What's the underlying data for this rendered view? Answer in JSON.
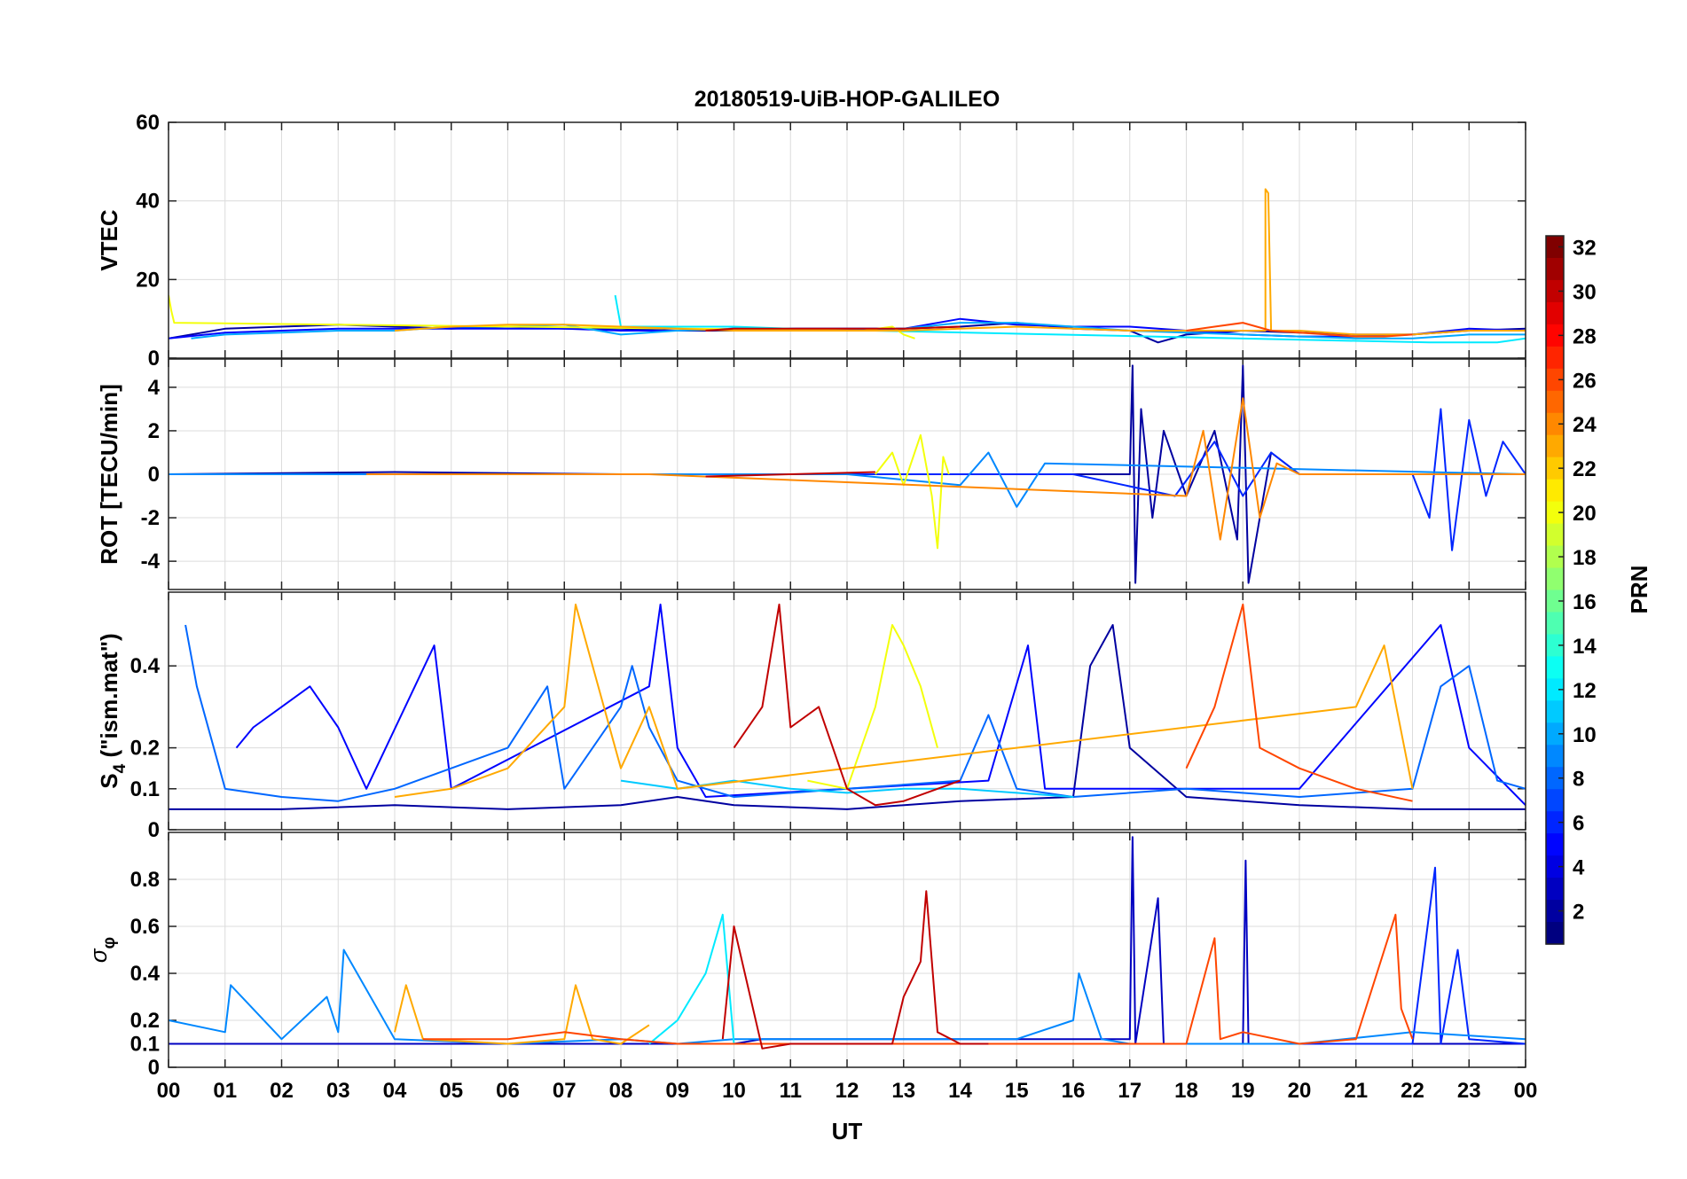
{
  "chart_data": {
    "type": "line",
    "title": "20180519-UiB-HOP-GALILEO",
    "xlabel": "UT",
    "x_ticks": [
      "00",
      "01",
      "02",
      "03",
      "04",
      "05",
      "06",
      "07",
      "08",
      "09",
      "10",
      "11",
      "12",
      "13",
      "14",
      "15",
      "16",
      "17",
      "18",
      "19",
      "20",
      "21",
      "22",
      "23",
      "00"
    ],
    "xlim": [
      0,
      24
    ],
    "grid": true,
    "colorbar": {
      "label": "PRN",
      "range": [
        1,
        32
      ],
      "ticks": [
        "2",
        "4",
        "6",
        "8",
        "10",
        "12",
        "14",
        "16",
        "18",
        "20",
        "22",
        "24",
        "26",
        "28",
        "30",
        "32"
      ],
      "colormap": "jet"
    },
    "panels": [
      {
        "ylabel": "VTEC",
        "ylim": [
          0,
          60
        ],
        "yticks": [
          "0",
          "20",
          "40",
          "60"
        ],
        "series": [
          {
            "prn": 2,
            "x": [
              0,
              1,
              2,
              3,
              4,
              5,
              6,
              7,
              8,
              9,
              10,
              11,
              12,
              13,
              14,
              15,
              16,
              17,
              17.5,
              18,
              19,
              20,
              21,
              22,
              23,
              24
            ],
            "y": [
              5,
              7.5,
              8,
              8.5,
              8,
              7.5,
              8,
              7.5,
              7.5,
              7,
              7,
              7.5,
              7.5,
              7.5,
              8,
              9,
              7.5,
              7,
              4,
              6,
              7,
              6.5,
              6,
              6,
              7,
              7.5
            ]
          },
          {
            "prn": 5,
            "x": [
              0,
              1,
              2,
              3,
              4,
              5,
              6,
              7,
              8,
              9,
              10,
              11,
              12,
              13,
              14,
              15,
              16,
              17,
              18,
              19,
              20,
              21,
              22,
              23,
              24
            ],
            "y": [
              5,
              6.5,
              7,
              7.5,
              7.5,
              7.5,
              7.5,
              7.5,
              7,
              7,
              7.5,
              7.5,
              7.5,
              7.5,
              10,
              8.5,
              8,
              8,
              7,
              6,
              5.5,
              5.5,
              6,
              7.5,
              7
            ]
          },
          {
            "prn": 10,
            "x": [
              0.4,
              1,
              2,
              3,
              4,
              5,
              6,
              7,
              8,
              9,
              10,
              11,
              12,
              13,
              14,
              15,
              16,
              17,
              18,
              19,
              20,
              21,
              22,
              23,
              24
            ],
            "y": [
              5,
              6,
              6.5,
              7,
              7,
              8,
              8,
              8.5,
              6,
              7,
              7.5,
              7,
              7,
              7.5,
              9,
              9,
              8,
              7,
              6.5,
              6,
              5.5,
              5,
              5,
              6,
              6
            ]
          },
          {
            "prn": 12,
            "x": [
              7.9,
              8,
              9,
              10,
              11,
              12,
              12.5,
              22.3,
              23,
              23.5,
              24
            ],
            "y": [
              16,
              8,
              8,
              8,
              7.5,
              7,
              7,
              4,
              4,
              4,
              5
            ]
          },
          {
            "prn": 20,
            "x": [
              0,
              0.05,
              0.1,
              12.3,
              12.8,
              13,
              13.2
            ],
            "y": [
              16,
              12,
              9,
              7,
              8,
              6,
              5
            ]
          },
          {
            "prn": 23,
            "x": [
              4,
              5,
              6,
              7,
              8,
              9,
              10,
              11,
              12,
              13,
              14,
              15,
              16,
              17,
              18,
              19,
              19.4,
              19.4,
              19.45,
              19.5,
              20,
              21,
              22,
              23,
              24
            ],
            "y": [
              7,
              8,
              8.5,
              8.5,
              8,
              7.5,
              7,
              7,
              7,
              7,
              7.5,
              8,
              7.5,
              7,
              7,
              7,
              7,
              43,
              42,
              7,
              7,
              6,
              6,
              7,
              7
            ]
          },
          {
            "prn": 26,
            "x": [
              18,
              18.5,
              19,
              19.5,
              20,
              20.5,
              21,
              21.5,
              22
            ],
            "y": [
              7,
              8,
              9,
              7,
              6.5,
              6,
              5.5,
              5.5,
              6
            ]
          },
          {
            "prn": 30,
            "x": [
              9.5,
              10,
              11,
              12,
              13,
              14
            ],
            "y": [
              7,
              7.5,
              7.5,
              7.5,
              7.5,
              8
            ]
          }
        ]
      },
      {
        "ylabel": "ROT [TECU/min]",
        "ylim": [
          -5.3,
          5.3
        ],
        "yticks": [
          "-4",
          "-2",
          "0",
          "2",
          "4"
        ],
        "series": [
          {
            "prn": 2,
            "x": [
              0,
              4,
              8,
              12,
              16,
              17,
              17.05,
              17.1,
              17.2,
              17.4,
              17.6,
              18,
              18.5,
              18.9,
              19,
              19.1,
              19.5,
              20,
              24
            ],
            "y": [
              0,
              0.1,
              0,
              0,
              0,
              0,
              5,
              -5,
              3,
              -2,
              2,
              -1,
              2,
              -3,
              5,
              -5,
              1,
              0,
              0
            ]
          },
          {
            "prn": 6,
            "x": [
              0,
              10,
              16,
              17.8,
              18.5,
              19,
              19.5,
              20,
              22,
              22.3,
              22.5,
              22.7,
              23,
              23.3,
              23.6,
              24
            ],
            "y": [
              0,
              0,
              0,
              -1,
              1.5,
              -1,
              1,
              0,
              0,
              -2,
              3,
              -3.5,
              2.5,
              -1,
              1.5,
              0
            ]
          },
          {
            "prn": 9,
            "x": [
              0,
              4,
              8,
              12,
              14,
              14.5,
              15,
              15.5,
              24
            ],
            "y": [
              0,
              0,
              0,
              0,
              -0.5,
              1,
              -1.5,
              0.5,
              0
            ]
          },
          {
            "prn": 20,
            "x": [
              12.5,
              12.8,
              13,
              13.3,
              13.5,
              13.6,
              13.7,
              13.8
            ],
            "y": [
              0,
              1,
              -0.5,
              1.8,
              -1,
              -3.4,
              0.8,
              0
            ]
          },
          {
            "prn": 24,
            "x": [
              3.5,
              6,
              8.5,
              18,
              18.3,
              18.6,
              19,
              19.3,
              19.6,
              20,
              22,
              24
            ],
            "y": [
              0,
              0,
              0,
              -1,
              2,
              -3,
              3.5,
              -2,
              0.5,
              0,
              0,
              0
            ]
          },
          {
            "prn": 30,
            "x": [
              9.5,
              11,
              12.5
            ],
            "y": [
              -0.1,
              0,
              0.1
            ]
          }
        ]
      },
      {
        "ylabel": "S4 (\"ism.mat\")",
        "ylabel_main": "S",
        "ylabel_sub": "4",
        "ylabel_rest": " (\"ism.mat\")",
        "ylim": [
          0,
          0.58
        ],
        "yticks": [
          "0",
          "0.1",
          "0.2",
          "0.4"
        ],
        "series": [
          {
            "prn": 2,
            "x": [
              0,
              2,
              4,
              6,
              8,
              9,
              10,
              12,
              14,
              16,
              16.3,
              16.7,
              17,
              18,
              20,
              22,
              24
            ],
            "y": [
              0.05,
              0.05,
              0.06,
              0.05,
              0.06,
              0.08,
              0.06,
              0.05,
              0.07,
              0.08,
              0.4,
              0.5,
              0.2,
              0.08,
              0.06,
              0.05,
              0.05
            ]
          },
          {
            "prn": 5,
            "x": [
              1.2,
              1.5,
              2,
              2.5,
              3,
              3.5,
              4.7,
              5,
              8.5,
              8.7,
              9,
              9.5,
              14.5,
              15.2,
              15.5,
              20,
              22.5,
              23,
              24
            ],
            "y": [
              0.2,
              0.25,
              0.3,
              0.35,
              0.25,
              0.1,
              0.45,
              0.1,
              0.35,
              0.55,
              0.2,
              0.08,
              0.12,
              0.45,
              0.1,
              0.1,
              0.5,
              0.2,
              0.06
            ]
          },
          {
            "prn": 8,
            "x": [
              0.3,
              0.5,
              1,
              2,
              3,
              4,
              6,
              6.7,
              7,
              8,
              8.2,
              8.5,
              9,
              10,
              12,
              14,
              14.5,
              15,
              16,
              18,
              20,
              22,
              22.5,
              23,
              23.5,
              24
            ],
            "y": [
              0.5,
              0.35,
              0.1,
              0.08,
              0.07,
              0.1,
              0.2,
              0.35,
              0.1,
              0.3,
              0.4,
              0.25,
              0.12,
              0.08,
              0.1,
              0.12,
              0.28,
              0.1,
              0.08,
              0.1,
              0.08,
              0.1,
              0.35,
              0.4,
              0.12,
              0.1
            ]
          },
          {
            "prn": 11,
            "x": [
              8,
              9,
              10,
              11,
              12,
              13,
              14,
              15,
              16
            ],
            "y": [
              0.12,
              0.1,
              0.12,
              0.1,
              0.09,
              0.1,
              0.1,
              0.09,
              0.08
            ]
          },
          {
            "prn": 20,
            "x": [
              11.3,
              12,
              12.5,
              12.8,
              13,
              13.3,
              13.6
            ],
            "y": [
              0.12,
              0.1,
              0.3,
              0.5,
              0.45,
              0.35,
              0.2
            ]
          },
          {
            "prn": 23,
            "x": [
              4,
              5,
              6,
              7,
              7.2,
              8,
              8.5,
              9,
              21,
              21.5,
              22
            ],
            "y": [
              0.08,
              0.1,
              0.15,
              0.3,
              0.55,
              0.15,
              0.3,
              0.1,
              0.3,
              0.45,
              0.1
            ]
          },
          {
            "prn": 26,
            "x": [
              18,
              18.5,
              19,
              19.3,
              20,
              21,
              22
            ],
            "y": [
              0.15,
              0.3,
              0.55,
              0.2,
              0.15,
              0.1,
              0.07
            ]
          },
          {
            "prn": 30,
            "x": [
              10,
              10.5,
              10.8,
              11,
              11.5,
              12,
              12.5,
              13,
              14
            ],
            "y": [
              0.2,
              0.3,
              0.55,
              0.25,
              0.3,
              0.1,
              0.06,
              0.07,
              0.12
            ]
          }
        ]
      },
      {
        "ylabel": "σφ",
        "ylabel_main": "σ",
        "ylabel_sub": "φ",
        "ylim": [
          0,
          1.0
        ],
        "yticks": [
          "0",
          "0.1",
          "0.2",
          "0.4",
          "0.6",
          "0.8"
        ],
        "series": [
          {
            "prn": 3,
            "x": [
              0,
              9,
              10,
              10.5,
              16,
              17,
              17.05,
              17.1,
              17.5,
              17.6,
              18,
              19,
              19.05,
              19.1,
              20,
              24
            ],
            "y": [
              0.1,
              0.1,
              0.1,
              0.12,
              0.12,
              0.12,
              0.98,
              0.1,
              0.72,
              0.1,
              0.1,
              0.1,
              0.88,
              0.1,
              0.1,
              0.1
            ]
          },
          {
            "prn": 6,
            "x": [
              16,
              22,
              22.4,
              22.5,
              22.8,
              23,
              24
            ],
            "y": [
              0.1,
              0.1,
              0.85,
              0.1,
              0.5,
              0.12,
              0.1
            ]
          },
          {
            "prn": 9,
            "x": [
              0,
              1,
              1.1,
              2,
              2.8,
              3,
              3.1,
              4,
              6,
              8,
              9,
              10,
              12,
              14,
              15,
              16,
              16.1,
              16.5,
              17,
              18,
              19,
              20,
              22,
              24
            ],
            "y": [
              0.2,
              0.15,
              0.35,
              0.12,
              0.3,
              0.15,
              0.5,
              0.12,
              0.1,
              0.12,
              0.1,
              0.12,
              0.12,
              0.12,
              0.12,
              0.2,
              0.4,
              0.12,
              0.1,
              0.1,
              0.1,
              0.1,
              0.15,
              0.12
            ]
          },
          {
            "prn": 12,
            "x": [
              8.5,
              9,
              9.5,
              9.8,
              10
            ],
            "y": [
              0.1,
              0.2,
              0.4,
              0.65,
              0.1
            ]
          },
          {
            "prn": 23,
            "x": [
              4,
              4.2,
              4.5,
              6,
              7,
              7.2,
              7.5,
              8,
              8.5
            ],
            "y": [
              0.15,
              0.35,
              0.12,
              0.1,
              0.12,
              0.35,
              0.12,
              0.1,
              0.18
            ]
          },
          {
            "prn": 26,
            "x": [
              4.5,
              6,
              7,
              8,
              9,
              18,
              18.5,
              18.6,
              19,
              20,
              21,
              21.7,
              21.8,
              22
            ],
            "y": [
              0.12,
              0.12,
              0.15,
              0.12,
              0.1,
              0.1,
              0.55,
              0.12,
              0.15,
              0.1,
              0.12,
              0.65,
              0.25,
              0.12
            ]
          },
          {
            "prn": 30,
            "x": [
              9.8,
              10,
              10.5,
              11,
              12,
              12.8,
              13,
              13.3,
              13.4,
              13.6,
              14,
              14.5
            ],
            "y": [
              0.12,
              0.6,
              0.08,
              0.1,
              0.1,
              0.1,
              0.3,
              0.45,
              0.75,
              0.15,
              0.1,
              0.1
            ]
          }
        ]
      }
    ]
  }
}
